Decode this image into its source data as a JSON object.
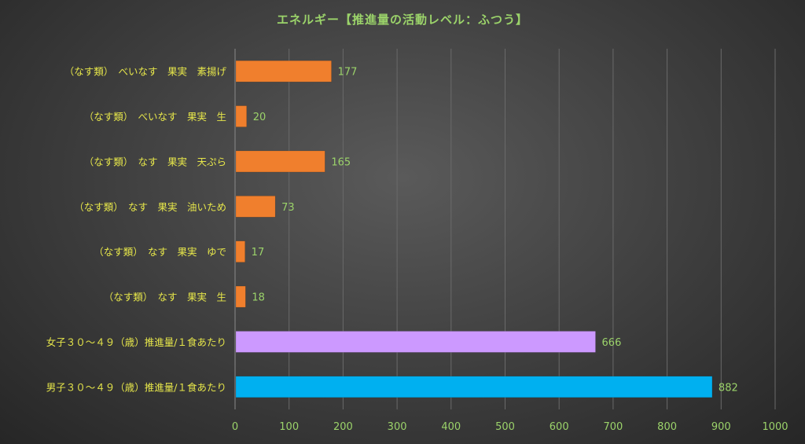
{
  "chart_data": {
    "type": "bar",
    "orientation": "horizontal",
    "title": "エネルギー【推進量の活動レベル：ふつう】",
    "xlabel": "",
    "ylabel": "",
    "xlim": [
      0,
      1000
    ],
    "xticks": [
      0,
      100,
      200,
      300,
      400,
      500,
      600,
      700,
      800,
      900,
      1000
    ],
    "grid": true,
    "legend": "none",
    "categories": [
      "（なす類）　べいなす　果実　素揚げ",
      "（なす類）　べいなす　果実　生",
      "（なす類）　なす　果実　天ぷら",
      "（なす類）　なす　果実　油いため",
      "（なす類）　なす　果実　ゆで",
      "（なす類）　なす　果実　生",
      "女子３０～４９（歳）推進量/１食あたり",
      "男子３０～４９（歳）推進量/１食あたり"
    ],
    "values": [
      177,
      20,
      165,
      73,
      17,
      18,
      666,
      882
    ],
    "bar_colors": [
      "#f07f2d",
      "#f07f2d",
      "#f07f2d",
      "#f07f2d",
      "#f07f2d",
      "#f07f2d",
      "#cc99ff",
      "#00b0f0"
    ]
  },
  "colors": {
    "category_label": "#e6e64a",
    "tick_label": "#9bd36a",
    "value_label": "#9bd36a",
    "title": "#9bd36a",
    "gridline": "#6a6a6a",
    "axis": "#8a8a8a"
  }
}
